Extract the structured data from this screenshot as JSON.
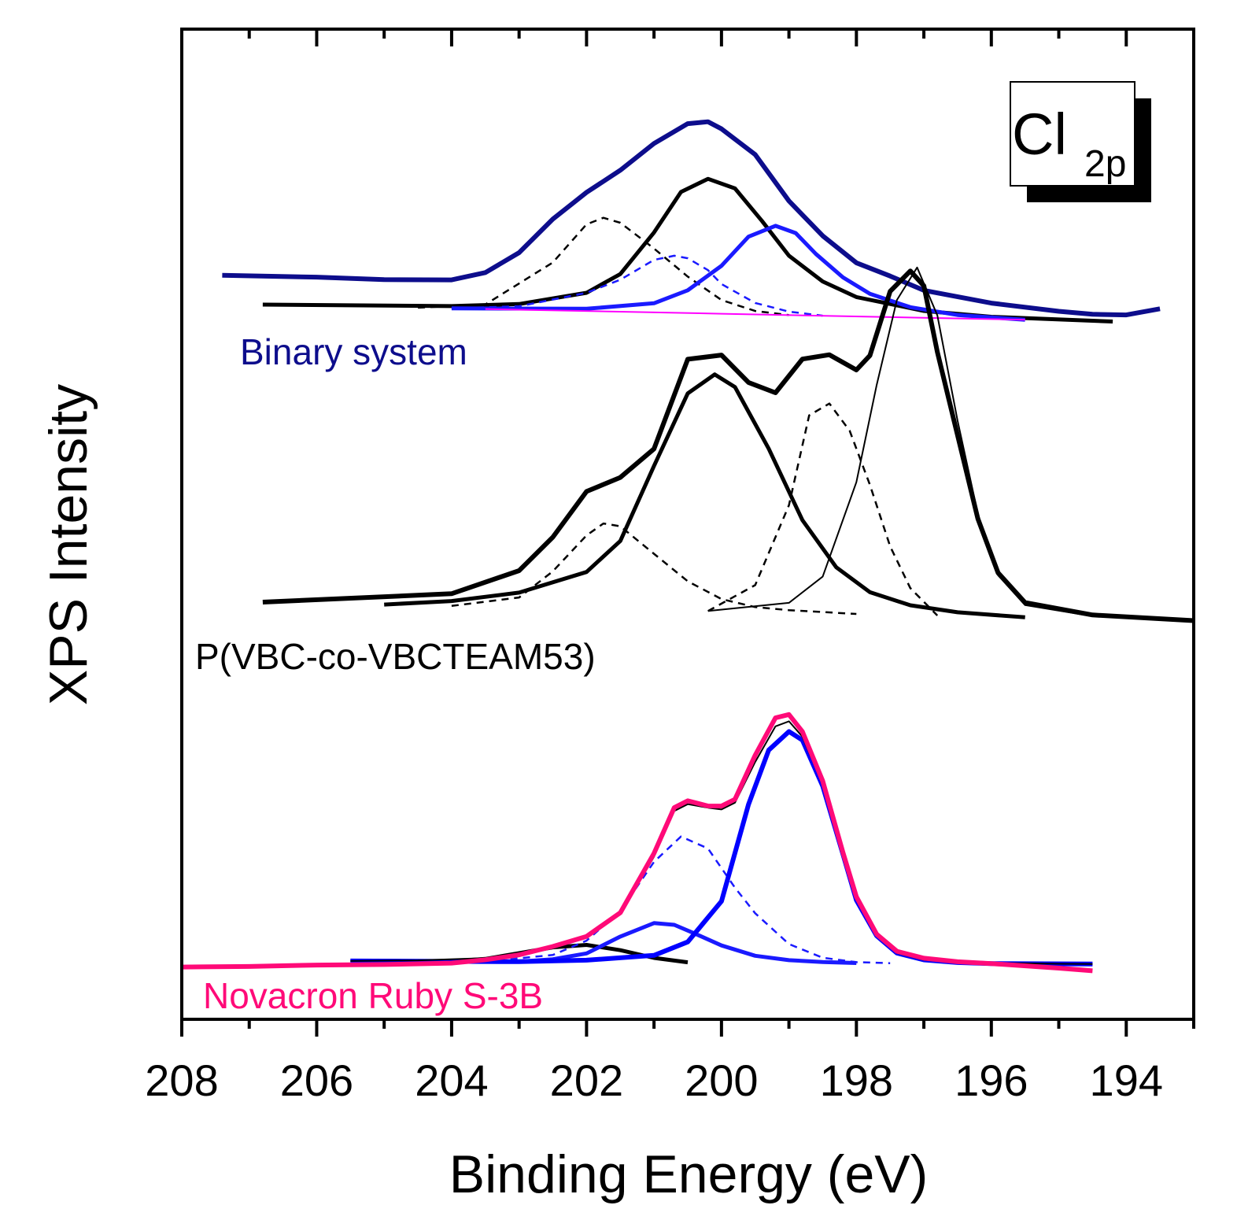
{
  "chart_data": {
    "type": "line",
    "title": "",
    "xlabel": "Binding Energy (eV)",
    "ylabel": "XPS Intensity",
    "xlim": [
      208,
      193
    ],
    "x_reversed": true,
    "x_ticks": [
      208,
      206,
      204,
      202,
      200,
      198,
      196,
      194
    ],
    "y_ticks_labeled": false,
    "grid": false,
    "inset_label": {
      "main": "Cl",
      "subscript": "2p"
    },
    "units": "y in arbitrary units (offset stacked spectra)",
    "panels": [
      {
        "name": "Binary system",
        "label": "Binary system",
        "color": "#0d0d8c",
        "experimental": {
          "name": "Binary system experimental",
          "color": "#0d0d8c",
          "x": [
            207.4,
            206.0,
            205.0,
            204.0,
            203.5,
            203.0,
            202.5,
            202.0,
            201.5,
            201.0,
            200.5,
            200.2,
            200.0,
            199.5,
            199.0,
            198.5,
            198.0,
            197.5,
            197.0,
            196.0,
            195.0,
            194.5,
            194.0,
            193.5
          ],
          "y": [
            25,
            25,
            24,
            25,
            32,
            50,
            80,
            104,
            124,
            148,
            166,
            168,
            162,
            140,
            100,
            70,
            47,
            36,
            24,
            14,
            8,
            6,
            6,
            12
          ]
        },
        "components": [
          {
            "name": "Binary peak 1",
            "style": "dashed",
            "color": "#000000",
            "x": [
              204.5,
              203.5,
              202.5,
              202.0,
              201.75,
              201.5,
              201.0,
              200.5,
              200.0,
              199.5,
              199.0
            ],
            "y": [
              0,
              4,
              42,
              76,
              82,
              78,
              56,
              32,
              12,
              3,
              0
            ]
          },
          {
            "name": "Binary peak 2",
            "style": "solid",
            "color": "#000000",
            "x": [
              206.8,
              204.0,
              203.0,
              202.0,
              201.5,
              201.0,
              200.6,
              200.2,
              199.8,
              199.4,
              199.0,
              198.5,
              198.0,
              197.0,
              196.0,
              194.2
            ],
            "y": [
              0,
              2,
              5,
              16,
              33,
              70,
              106,
              118,
              110,
              82,
              52,
              30,
              17,
              6,
              2,
              0
            ]
          },
          {
            "name": "Binary peak 3",
            "style": "dashed",
            "color": "#1a1aff",
            "x": [
              204.0,
              203.0,
              202.0,
              201.5,
              201.0,
              200.7,
              200.5,
              200.2,
              200.0,
              199.5,
              199.0,
              198.5
            ],
            "y": [
              0,
              3,
              16,
              28,
              46,
              50,
              48,
              38,
              26,
              10,
              3,
              0
            ]
          },
          {
            "name": "Binary peak 4",
            "style": "solid",
            "color": "#1a1aff",
            "x": [
              204.0,
              202.0,
              201.0,
              200.5,
              200.0,
              199.6,
              199.2,
              198.9,
              198.6,
              198.2,
              197.8,
              197.2,
              196.5,
              195.5
            ],
            "y": [
              0,
              2,
              8,
              20,
              42,
              68,
              78,
              72,
              54,
              34,
              20,
              9,
              3,
              0
            ]
          },
          {
            "name": "Binary baseline",
            "style": "solid",
            "color": "#ff00ff",
            "x": [
              203.5,
              200.0,
              197.0,
              195.5
            ],
            "y": [
              0,
              0,
              0,
              0
            ]
          }
        ]
      },
      {
        "name": "P(VBC-co-VBCTEAM53)",
        "label": "P(VBC-co-VBCTEAM53)",
        "color": "#000000",
        "envelope": {
          "name": "P(VBC) envelope",
          "color": "#000000",
          "x": [
            206.8,
            204.0,
            203.0,
            202.5,
            202.0,
            201.5,
            201.0,
            200.5,
            200.0,
            199.6,
            199.2,
            198.8,
            198.4,
            198.0,
            197.8,
            197.5,
            197.2,
            197.0,
            196.8,
            196.5,
            196.2,
            195.9,
            195.5,
            194.5,
            193.0
          ],
          "y": [
            0,
            10,
            30,
            58,
            96,
            108,
            132,
            206,
            210,
            188,
            180,
            208,
            212,
            200,
            212,
            265,
            282,
            270,
            216,
            148,
            80,
            36,
            12,
            3,
            0
          ]
        },
        "components": [
          {
            "name": "P(VBC) peak 1",
            "style": "dashed",
            "color": "#000000",
            "x": [
              204.0,
              203.0,
              202.5,
              202.0,
              201.75,
              201.5,
              201.0,
              200.5,
              200.0,
              199.5,
              199.0,
              198.5,
              198.0
            ],
            "y": [
              0,
              8,
              30,
              60,
              70,
              68,
              46,
              24,
              10,
              4,
              2,
              1,
              0
            ]
          },
          {
            "name": "P(VBC) peak 2",
            "style": "solid",
            "color": "#000000",
            "x": [
              205.0,
              204.0,
              203.0,
              202.0,
              201.5,
              201.0,
              200.5,
              200.1,
              199.8,
              199.3,
              198.8,
              198.3,
              197.8,
              197.2,
              196.5,
              195.5
            ],
            "y": [
              0,
              4,
              12,
              30,
              56,
              118,
              178,
              194,
              184,
              134,
              76,
              38,
              18,
              8,
              3,
              0
            ]
          },
          {
            "name": "P(VBC) peak 3",
            "style": "dashed",
            "color": "#000000",
            "x": [
              200.2,
              199.5,
              199.0,
              198.7,
              198.4,
              198.1,
              197.8,
              197.5,
              197.2,
              196.8
            ],
            "y": [
              0,
              22,
              88,
              162,
              172,
              150,
              106,
              56,
              22,
              0
            ]
          },
          {
            "name": "P(VBC) peak 4",
            "style": "solid",
            "color": "#000000",
            "x": [
              200.2,
              199.0,
              198.5,
              198.0,
              197.7,
              197.4,
              197.1,
              196.8,
              196.5,
              196.2,
              195.9,
              195.5,
              194.5,
              193.0
            ],
            "y": [
              0,
              8,
              30,
              108,
              188,
              258,
              285,
              246,
              160,
              84,
              34,
              10,
              2,
              0
            ]
          }
        ]
      },
      {
        "name": "Novacron Ruby S-3B",
        "label": "Novacron Ruby S-3B",
        "color": "#ff0a78",
        "experimental": {
          "name": "Novacron experimental",
          "color": "#ff0a78",
          "x": [
            208.0,
            207.0,
            206.0,
            205.0,
            204.0,
            203.5,
            203.0,
            202.5,
            202.0,
            201.5,
            201.0,
            200.7,
            200.5,
            200.2,
            200.0,
            199.8,
            199.5,
            199.2,
            199.0,
            198.8,
            198.5,
            198.2,
            198.0,
            197.7,
            197.4,
            197.0,
            196.5,
            196.0,
            195.0,
            194.5
          ],
          "y": [
            -8,
            -7,
            -5,
            -4,
            -2,
            2,
            8,
            18,
            30,
            58,
            128,
            182,
            190,
            184,
            184,
            192,
            244,
            288,
            292,
            272,
            214,
            130,
            78,
            34,
            14,
            6,
            2,
            0,
            -5,
            -8
          ]
        },
        "envelope": {
          "name": "Novacron envelope",
          "color": "#000000",
          "x": [
            205.5,
            204.5,
            203.5,
            203.0,
            202.5,
            202.0,
            201.5,
            201.0,
            200.7,
            200.5,
            200.2,
            200.0,
            199.8,
            199.5,
            199.2,
            199.0,
            198.8,
            198.5,
            198.2,
            198.0,
            197.7,
            197.4,
            197.0,
            196.5,
            195.0,
            194.5
          ],
          "y": [
            0,
            1,
            4,
            10,
            18,
            30,
            56,
            124,
            178,
            186,
            182,
            180,
            188,
            236,
            278,
            284,
            266,
            210,
            128,
            76,
            32,
            12,
            4,
            1,
            0,
            0
          ]
        },
        "components": [
          {
            "name": "Novacron peak 1",
            "style": "solid",
            "color": "#000000",
            "x": [
              204.0,
              203.5,
              203.0,
              202.5,
              202.0,
              201.5,
              201.0,
              200.5
            ],
            "y": [
              0,
              3,
              10,
              17,
              20,
              14,
              5,
              0
            ]
          },
          {
            "name": "Novacron peak 2",
            "style": "dashed",
            "color": "#1a1aff",
            "x": [
              203.5,
              202.5,
              202.0,
              201.5,
              201.0,
              200.6,
              200.2,
              199.8,
              199.5,
              199.0,
              198.5,
              198.0,
              197.5
            ],
            "y": [
              0,
              8,
              25,
              60,
              118,
              148,
              134,
              88,
              58,
              22,
              6,
              1,
              0
            ]
          },
          {
            "name": "Novacron peak 3",
            "style": "solid",
            "color": "#1a1aff",
            "x": [
              203.0,
              202.5,
              202.0,
              201.5,
              201.0,
              200.7,
              200.4,
              200.0,
              199.5,
              199.0,
              198.5,
              198.0
            ],
            "y": [
              0,
              3,
              10,
              30,
              46,
              44,
              34,
              20,
              8,
              3,
              1,
              0
            ]
          },
          {
            "name": "Novacron peak 4",
            "style": "solid",
            "color": "#0000ff",
            "x": [
              205.5,
              203.0,
              202.0,
              201.0,
              200.5,
              200.0,
              199.6,
              199.3,
              199.0,
              198.8,
              198.5,
              198.2,
              198.0,
              197.7,
              197.4,
              197.0,
              196.5,
              196.0,
              194.5
            ],
            "y": [
              0,
              0,
              2,
              8,
              24,
              72,
              186,
              250,
              272,
              262,
              208,
              128,
              74,
              32,
              12,
              4,
              1,
              0,
              0
            ]
          }
        ]
      }
    ]
  }
}
